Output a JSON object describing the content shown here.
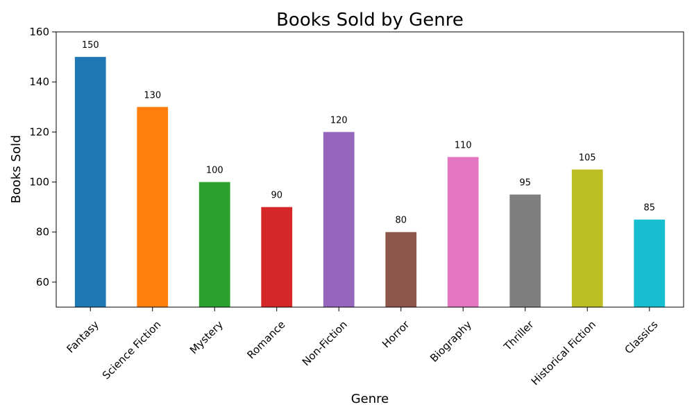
{
  "chart_data": {
    "type": "bar",
    "title": "Books Sold by Genre",
    "xlabel": "Genre",
    "ylabel": "Books Sold",
    "categories": [
      "Fantasy",
      "Science Fiction",
      "Mystery",
      "Romance",
      "Non-Fiction",
      "Horror",
      "Biography",
      "Thriller",
      "Historical Fiction",
      "Classics"
    ],
    "values": [
      150,
      130,
      100,
      90,
      120,
      80,
      110,
      95,
      105,
      85
    ],
    "colors": [
      "#1f77b4",
      "#ff7f0e",
      "#2ca02c",
      "#d62728",
      "#9467bd",
      "#8c564b",
      "#e377c2",
      "#7f7f7f",
      "#bcbd22",
      "#17becf"
    ],
    "ylim": [
      50,
      160
    ],
    "yticks": [
      60,
      80,
      100,
      120,
      140,
      160
    ],
    "grid": false,
    "legend": false
  }
}
